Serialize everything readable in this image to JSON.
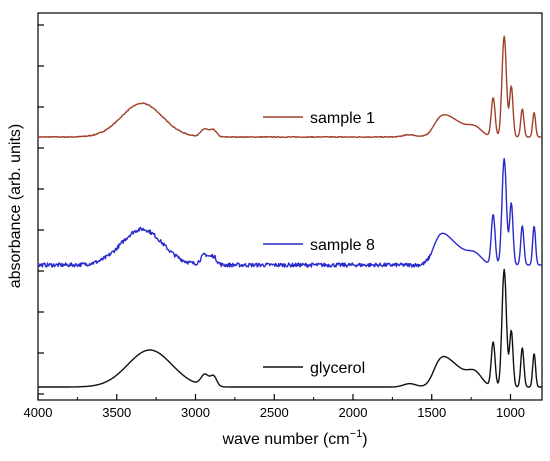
{
  "chart_data": {
    "type": "line",
    "xlabel": "wave number (cm",
    "xlabel_sup": "−1",
    "xlabel_tail": ")",
    "ylabel": "absorbance (arb. units)",
    "xlim": [
      4000,
      800
    ],
    "x_reversed": true,
    "x_ticks": [
      4000,
      3500,
      3000,
      2500,
      2000,
      1500,
      1000
    ],
    "y_ticks_show_labels": false,
    "grid": false,
    "legend_placement": "inline labels next to each curve",
    "series": [
      {
        "name": "sample 1",
        "color": "#A0402A",
        "offset": 2.0,
        "peaks": [
          {
            "x": 3340,
            "w": 130,
            "h": 0.3
          },
          {
            "x": 2940,
            "w": 25,
            "h": 0.07
          },
          {
            "x": 2885,
            "w": 20,
            "h": 0.06
          },
          {
            "x": 1640,
            "w": 40,
            "h": 0.02
          },
          {
            "x": 1460,
            "w": 40,
            "h": 0.08
          },
          {
            "x": 1410,
            "w": 50,
            "h": 0.12
          },
          {
            "x": 1330,
            "w": 60,
            "h": 0.1
          },
          {
            "x": 1225,
            "w": 45,
            "h": 0.08
          },
          {
            "x": 1110,
            "w": 12,
            "h": 0.35
          },
          {
            "x": 1040,
            "w": 14,
            "h": 0.9
          },
          {
            "x": 995,
            "w": 11,
            "h": 0.45
          },
          {
            "x": 925,
            "w": 10,
            "h": 0.25
          },
          {
            "x": 850,
            "w": 9,
            "h": 0.22
          }
        ],
        "noise": 0.004
      },
      {
        "name": "sample 8",
        "color": "#2A2ACC",
        "offset": 1.0,
        "peaks": [
          {
            "x": 3340,
            "w": 130,
            "h": 0.32
          },
          {
            "x": 2940,
            "w": 25,
            "h": 0.09
          },
          {
            "x": 2885,
            "w": 20,
            "h": 0.07
          },
          {
            "x": 1460,
            "w": 40,
            "h": 0.14
          },
          {
            "x": 1410,
            "w": 50,
            "h": 0.16
          },
          {
            "x": 1330,
            "w": 60,
            "h": 0.12
          },
          {
            "x": 1225,
            "w": 45,
            "h": 0.09
          },
          {
            "x": 1110,
            "w": 12,
            "h": 0.45
          },
          {
            "x": 1040,
            "w": 14,
            "h": 0.95
          },
          {
            "x": 995,
            "w": 11,
            "h": 0.55
          },
          {
            "x": 925,
            "w": 10,
            "h": 0.35
          },
          {
            "x": 850,
            "w": 9,
            "h": 0.35
          }
        ],
        "noise": 0.018
      },
      {
        "name": "glycerol",
        "color": "#111111",
        "offset": 0.0,
        "peaks": [
          {
            "x": 3290,
            "w": 140,
            "h": 0.33
          },
          {
            "x": 2940,
            "w": 25,
            "h": 0.1
          },
          {
            "x": 2885,
            "w": 20,
            "h": 0.09
          },
          {
            "x": 1640,
            "w": 40,
            "h": 0.03
          },
          {
            "x": 1460,
            "w": 40,
            "h": 0.12
          },
          {
            "x": 1410,
            "w": 50,
            "h": 0.16
          },
          {
            "x": 1330,
            "w": 60,
            "h": 0.13
          },
          {
            "x": 1225,
            "w": 45,
            "h": 0.12
          },
          {
            "x": 1110,
            "w": 12,
            "h": 0.4
          },
          {
            "x": 1040,
            "w": 14,
            "h": 1.05
          },
          {
            "x": 995,
            "w": 11,
            "h": 0.5
          },
          {
            "x": 925,
            "w": 10,
            "h": 0.35
          },
          {
            "x": 850,
            "w": 9,
            "h": 0.3
          }
        ],
        "noise": 0.0
      }
    ]
  }
}
